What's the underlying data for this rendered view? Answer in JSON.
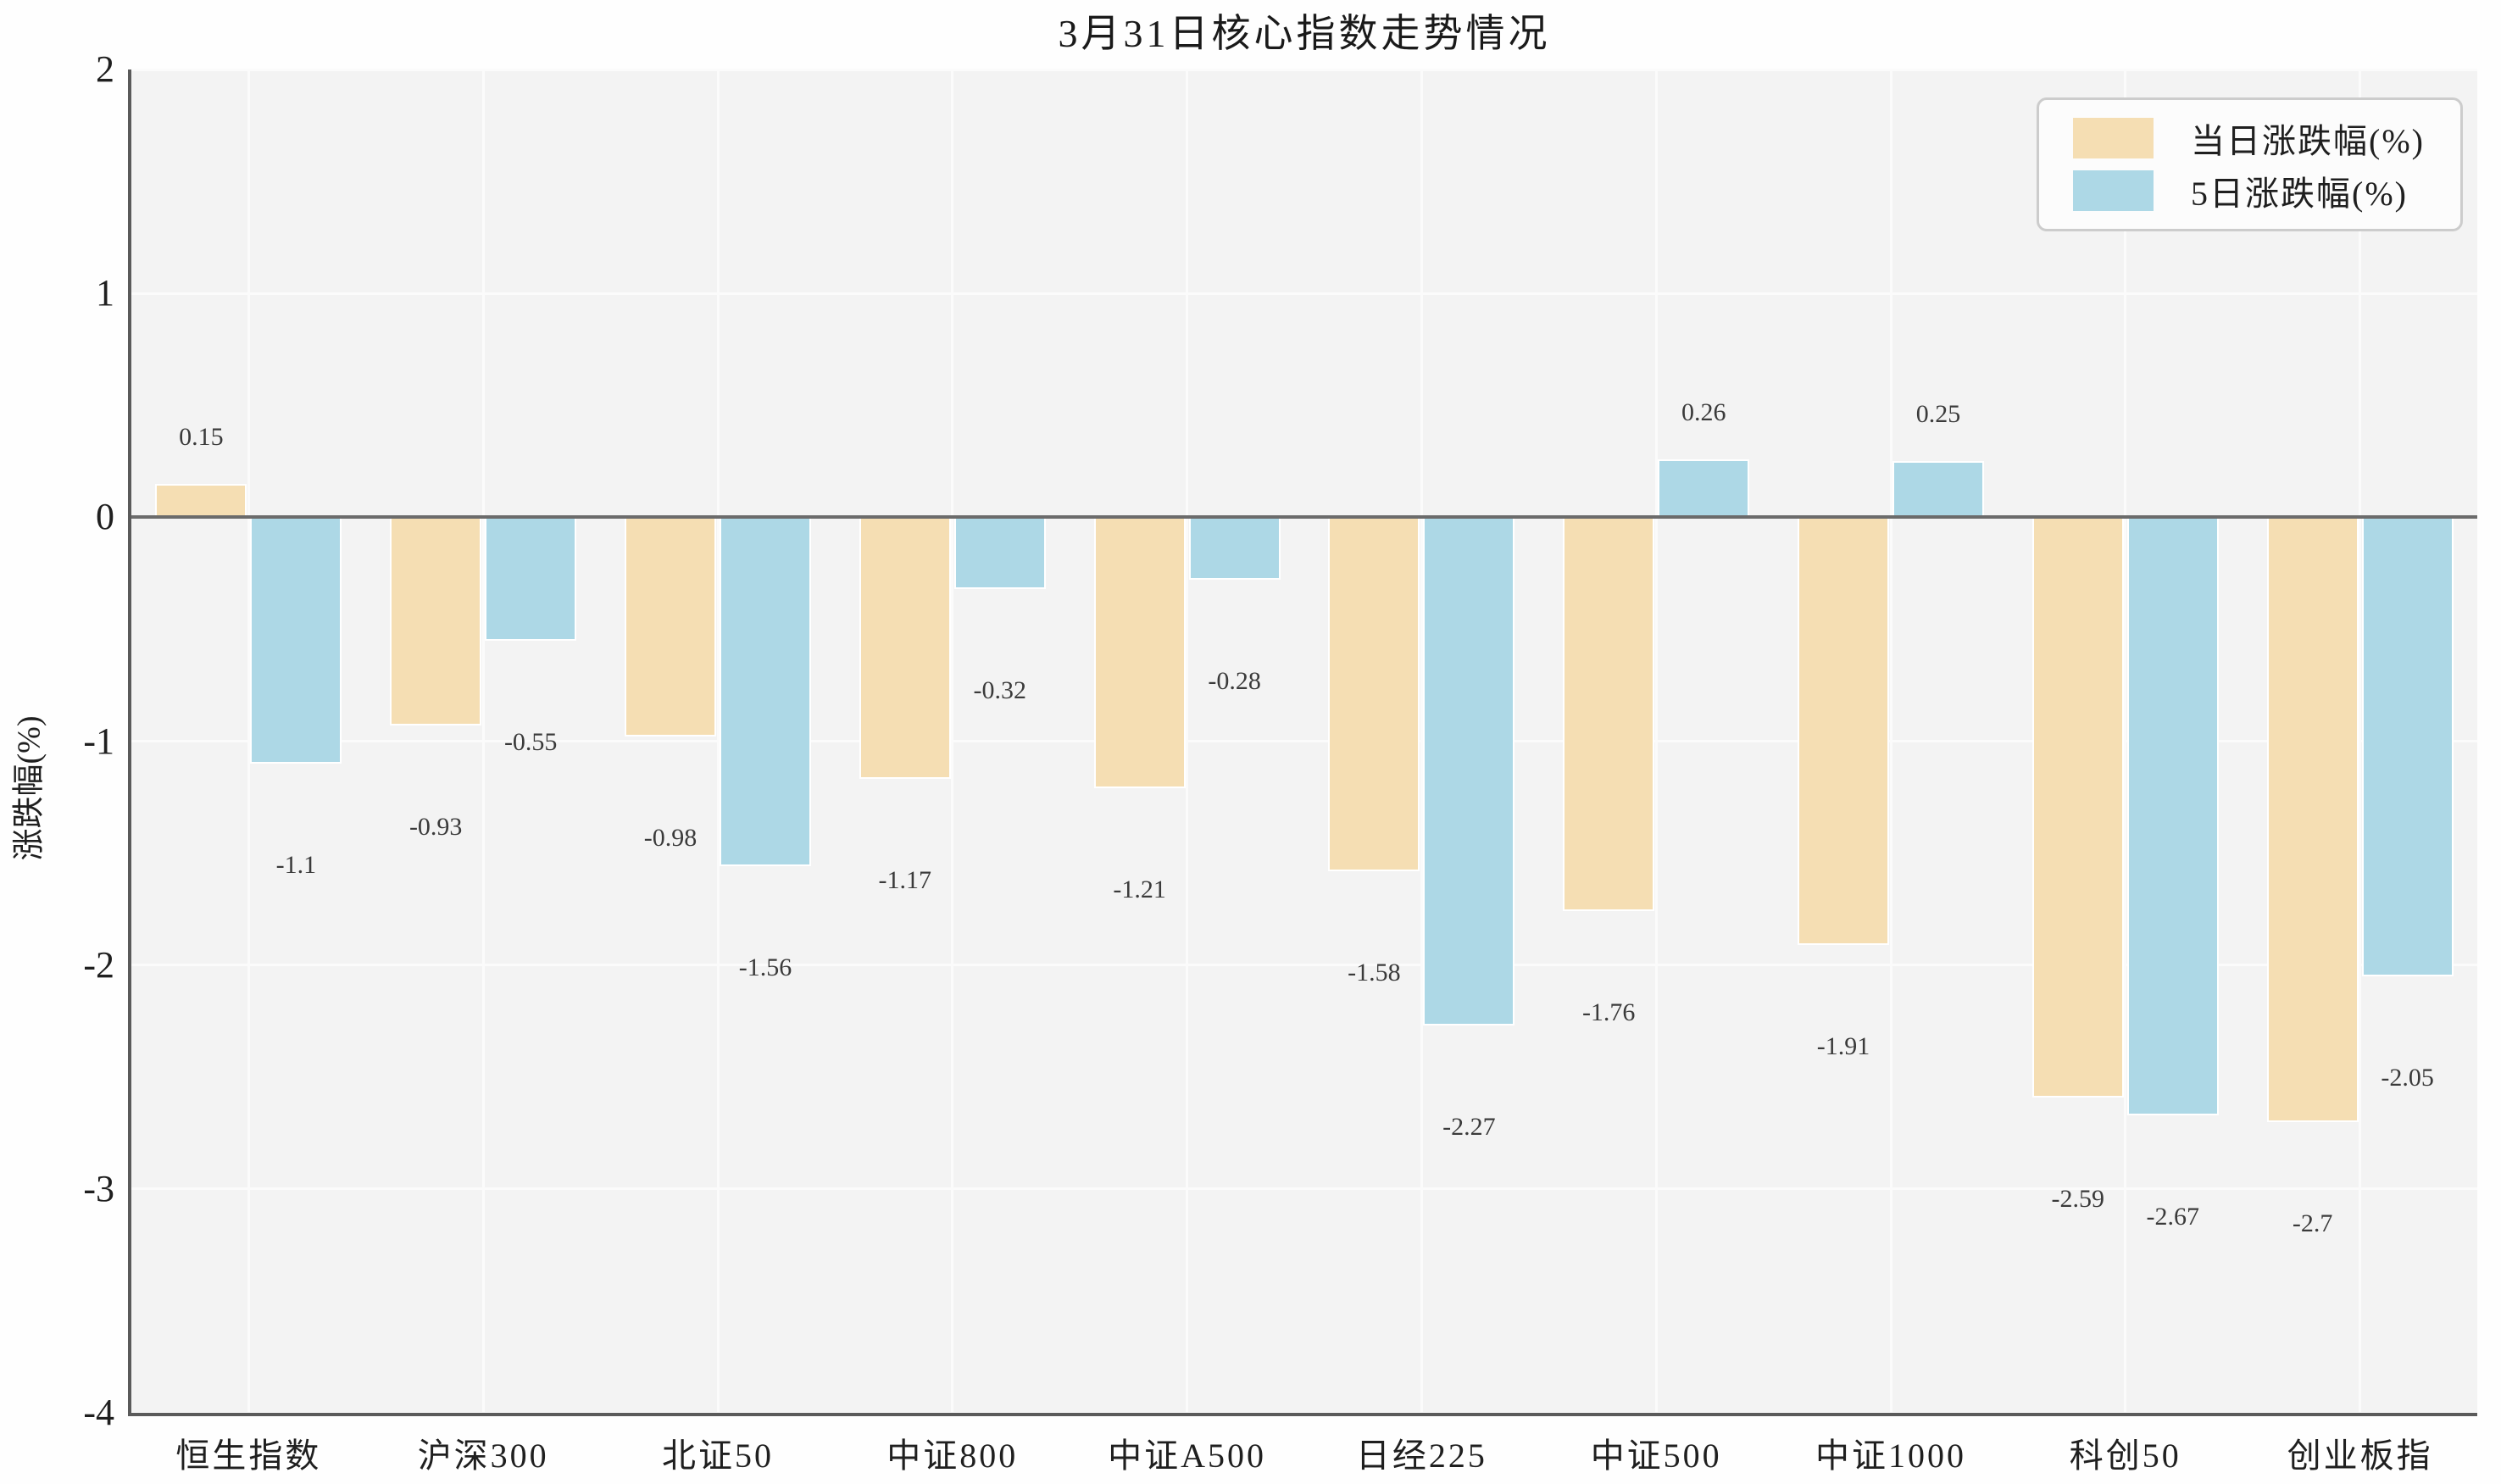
{
  "chart_data": {
    "type": "bar",
    "title": "3月31日核心指数走势情况",
    "xlabel": "",
    "ylabel": "涨跌幅(%)",
    "categories": [
      "恒生指数",
      "沪深300",
      "北证50",
      "中证800",
      "中证A500",
      "日经225",
      "中证500",
      "中证1000",
      "科创50",
      "创业板指"
    ],
    "series": [
      {
        "name": "当日涨跌幅(%)",
        "color": "#f5deb3",
        "values": [
          0.15,
          -0.93,
          -0.98,
          -1.17,
          -1.21,
          -1.58,
          -1.76,
          -1.91,
          -2.59,
          -2.7
        ]
      },
      {
        "name": "5日涨跌幅(%)",
        "color": "#add8e6",
        "values": [
          -1.1,
          -0.55,
          -1.56,
          -0.32,
          -0.28,
          -2.27,
          0.26,
          0.25,
          -2.67,
          -2.05
        ]
      }
    ],
    "ylim": [
      -4,
      2
    ],
    "yticks": [
      2,
      1,
      0,
      -1,
      -2,
      -3,
      -4
    ],
    "grid": true,
    "legend_position": "upper right",
    "colors": {
      "figure_background": "#fefefe",
      "plot_background": "#f3f3f3",
      "gridline": "#fbfbfb",
      "zero_line": "#6b6b6b",
      "spine": "#5a5a5a",
      "text": "#1f1f1f",
      "value_label": "#3a3a3a",
      "legend_border": "#cccccc",
      "legend_background": "#fcfcfc"
    }
  }
}
